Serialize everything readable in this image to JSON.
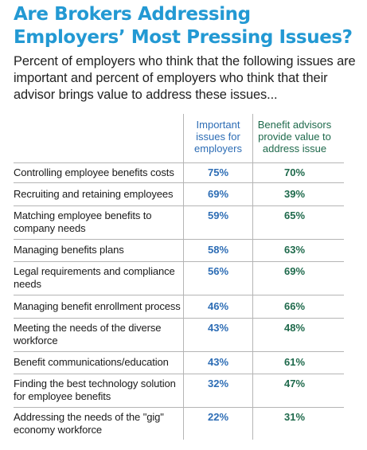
{
  "title": "Are Brokers Addressing Employers’ Most Pressing Issues?",
  "subtitle": "Percent of employers who think that the following issues are important and percent of employers who think that their advisor brings value to address these issues...",
  "colors": {
    "title": "#2399d3",
    "important": "#2d6db5",
    "advisor": "#1f6a4c",
    "rule": "#b5b5b5"
  },
  "chart_data": {
    "type": "table",
    "columns": [
      "Important issues for employers",
      "Benefit advisors provide value to address issue"
    ],
    "rows": [
      {
        "issue": "Controlling employee benefits costs",
        "important": "75%",
        "advisor": "70%"
      },
      {
        "issue": "Recruiting and retaining employees",
        "important": "69%",
        "advisor": "39%"
      },
      {
        "issue": "Matching employee benefits to company needs",
        "important": "59%",
        "advisor": "65%"
      },
      {
        "issue": "Managing benefits plans",
        "important": "58%",
        "advisor": "63%"
      },
      {
        "issue": "Legal requirements and compliance needs",
        "important": "56%",
        "advisor": "69%"
      },
      {
        "issue": "Managing benefit enrollment process",
        "important": "46%",
        "advisor": "66%"
      },
      {
        "issue": "Meeting the needs of the diverse workforce",
        "important": "43%",
        "advisor": "48%"
      },
      {
        "issue": "Benefit communications/education",
        "important": "43%",
        "advisor": "61%"
      },
      {
        "issue": "Finding the best technology solution for employee benefits",
        "important": "32%",
        "advisor": "47%"
      },
      {
        "issue": "Addressing the needs of the \"gig\" economy workforce",
        "important": "22%",
        "advisor": "31%"
      }
    ]
  }
}
